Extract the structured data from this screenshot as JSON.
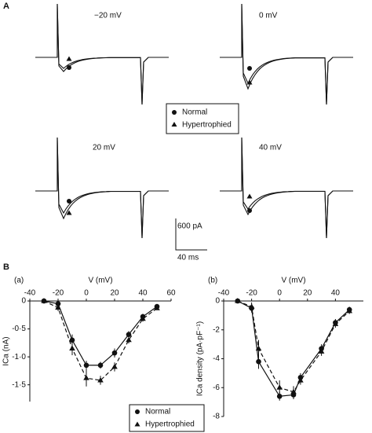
{
  "panel_labels": [
    "A",
    "B"
  ],
  "traces": {
    "voltages": [
      "−20 mV",
      "0 mV",
      "20 mV",
      "40 mV"
    ],
    "legend": [
      "Normal",
      "Hypertrophied"
    ],
    "scale": {
      "current": "600 pA",
      "time": "40 ms"
    }
  },
  "chart_data": [
    {
      "type": "line",
      "panel": "(a)",
      "x_label": "V (mV)",
      "y_label": "ICa (nA)",
      "xlim": [
        -40,
        60
      ],
      "xticks": [
        -40,
        -20,
        0,
        20,
        40,
        60
      ],
      "ylim": [
        -1.8,
        0
      ],
      "yticks": [
        0,
        {
          "value": -0.5,
          "label": "-0·5"
        },
        {
          "value": -1,
          "label": "-1·0"
        },
        {
          "value": -1.5,
          "label": "-1·5"
        }
      ],
      "x": [
        -30,
        -20,
        -10,
        0,
        10,
        20,
        30,
        40,
        50
      ],
      "series": [
        {
          "name": "Normal",
          "color": "#111111",
          "marker": "circle",
          "dash": false,
          "values": [
            0,
            -0.05,
            -0.7,
            -1.15,
            -1.15,
            -0.93,
            -0.6,
            -0.28,
            -0.1
          ],
          "errors": [
            0.02,
            0.05,
            0.1,
            0.08,
            0.06,
            0.08,
            0.06,
            0.05,
            0.03
          ]
        },
        {
          "name": "Hypertrophied",
          "color": "#111111",
          "marker": "triangle",
          "dash": true,
          "values": [
            0,
            -0.12,
            -0.85,
            -1.38,
            -1.42,
            -1.18,
            -0.7,
            -0.32,
            -0.13
          ],
          "errors": [
            0.02,
            0.06,
            0.12,
            0.15,
            0.08,
            0.08,
            0.06,
            0.05,
            0.03
          ]
        }
      ]
    },
    {
      "type": "line",
      "panel": "(b)",
      "x_label": "V (mV)",
      "y_label": "ICa density (pA·pF⁻¹)",
      "xlim": [
        -40,
        60
      ],
      "xticks": [
        -40,
        -20,
        0,
        20,
        40
      ],
      "ylim": [
        -8,
        0
      ],
      "yticks": [
        0,
        -2,
        -4,
        -6,
        -8
      ],
      "x": [
        -30,
        -20,
        -15,
        0,
        10,
        15,
        30,
        40,
        50
      ],
      "series": [
        {
          "name": "Normal",
          "color": "#111111",
          "marker": "circle",
          "dash": false,
          "values": [
            0,
            -0.5,
            -4.2,
            -6.6,
            -6.5,
            -5.3,
            -3.3,
            -1.5,
            -0.6
          ],
          "errors": [
            0.05,
            0.3,
            0.5,
            0.3,
            0.3,
            0.3,
            0.3,
            0.25,
            0.2
          ]
        },
        {
          "name": "Hypertrophied",
          "color": "#111111",
          "marker": "triangle",
          "dash": true,
          "values": [
            0,
            -0.4,
            -3.3,
            -6.0,
            -6.3,
            -5.5,
            -3.5,
            -1.6,
            -0.7
          ],
          "errors": [
            0.05,
            0.3,
            0.6,
            0.5,
            0.4,
            0.3,
            0.3,
            0.25,
            0.2
          ]
        }
      ]
    }
  ]
}
